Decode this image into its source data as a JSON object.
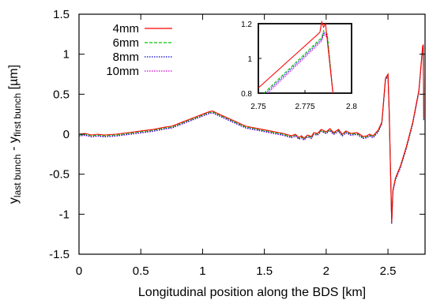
{
  "chart_data": {
    "type": "line",
    "xlabel": "Longitudinal position along the BDS [km]",
    "ylabel": {
      "y": "y",
      "sub1": "last bunch",
      "dash": " - y",
      "sub2": "first bunch",
      "unit": " [µm]"
    },
    "xlim": [
      0,
      2.8
    ],
    "ylim": [
      -1.5,
      1.5
    ],
    "xticks": [
      "0",
      "0.5",
      "1",
      "1.5",
      "2",
      "2.5"
    ],
    "xtick_values": [
      0,
      0.5,
      1,
      1.5,
      2,
      2.5
    ],
    "yticks": [
      "1.5",
      "1",
      "0.5",
      "0",
      "-0.5",
      "-1",
      "-1.5"
    ],
    "ytick_values": [
      1.5,
      1,
      0.5,
      0,
      -0.5,
      -1,
      -1.5
    ],
    "grid": false,
    "legend_position": "top-left",
    "series": [
      {
        "name": "4mm",
        "color": "#ff0000",
        "dash": "solid"
      },
      {
        "name": "6mm",
        "color": "#00c800",
        "dash": "dashed"
      },
      {
        "name": "8mm",
        "color": "#0000d0",
        "dash": "dotted"
      },
      {
        "name": "10mm",
        "color": "#d000d0",
        "dash": "dotted"
      }
    ],
    "x": [
      0,
      0.05,
      0.1,
      0.15,
      0.2,
      0.3,
      0.4,
      0.5,
      0.6,
      0.7,
      0.75,
      0.85,
      0.95,
      1.0,
      1.05,
      1.08,
      1.15,
      1.25,
      1.35,
      1.45,
      1.55,
      1.65,
      1.72,
      1.75,
      1.78,
      1.8,
      1.82,
      1.85,
      1.88,
      1.9,
      1.93,
      1.96,
      2.0,
      2.03,
      2.06,
      2.1,
      2.13,
      2.16,
      2.2,
      2.25,
      2.3,
      2.33,
      2.35,
      2.38,
      2.42,
      2.45,
      2.48,
      2.5,
      2.51,
      2.52,
      2.53,
      2.54,
      2.56,
      2.6,
      2.65,
      2.7,
      2.75,
      2.78,
      2.785,
      2.79
    ],
    "values": [
      0.0,
      0.01,
      -0.01,
      0.0,
      -0.01,
      0.0,
      0.02,
      0.04,
      0.06,
      0.09,
      0.1,
      0.16,
      0.22,
      0.25,
      0.28,
      0.29,
      0.24,
      0.17,
      0.1,
      0.07,
      0.04,
      0.01,
      -0.02,
      0.0,
      -0.04,
      -0.02,
      -0.05,
      -0.01,
      -0.03,
      0.02,
      0.01,
      0.06,
      0.03,
      0.07,
      0.02,
      0.06,
      0.0,
      0.04,
      0.01,
      0.02,
      -0.03,
      -0.02,
      0.0,
      -0.02,
      0.05,
      0.15,
      0.7,
      0.75,
      0.3,
      -0.4,
      -1.1,
      -0.7,
      -0.55,
      -0.4,
      -0.15,
      0.15,
      0.55,
      1.1,
      1.12,
      0.2
    ],
    "offsets": [
      0.0,
      -0.01,
      -0.02,
      -0.025
    ],
    "inset": {
      "xlim": [
        2.75,
        2.8
      ],
      "ylim": [
        0.8,
        1.2
      ],
      "xticks": [
        "2.75",
        "2.775",
        "2.8"
      ],
      "xtick_values": [
        2.75,
        2.775,
        2.8
      ],
      "yticks": [
        "1.2",
        "1",
        "0.8"
      ],
      "ytick_values": [
        1.2,
        1,
        0.8
      ],
      "series_points": [
        {
          "x": [
            2.75,
            2.783,
            2.784,
            2.785,
            2.786,
            2.79
          ],
          "y": [
            0.83,
            1.15,
            1.21,
            1.18,
            1.2,
            0.8
          ]
        },
        {
          "x": [
            2.753,
            2.784,
            2.785,
            2.787,
            2.79
          ],
          "y": [
            0.8,
            1.12,
            1.16,
            1.14,
            0.8
          ]
        },
        {
          "x": [
            2.754,
            2.784,
            2.785,
            2.787,
            2.79
          ],
          "y": [
            0.8,
            1.11,
            1.15,
            1.13,
            0.8
          ]
        },
        {
          "x": [
            2.755,
            2.784,
            2.785,
            2.787,
            2.79
          ],
          "y": [
            0.8,
            1.1,
            1.14,
            1.12,
            0.8
          ]
        }
      ]
    }
  }
}
